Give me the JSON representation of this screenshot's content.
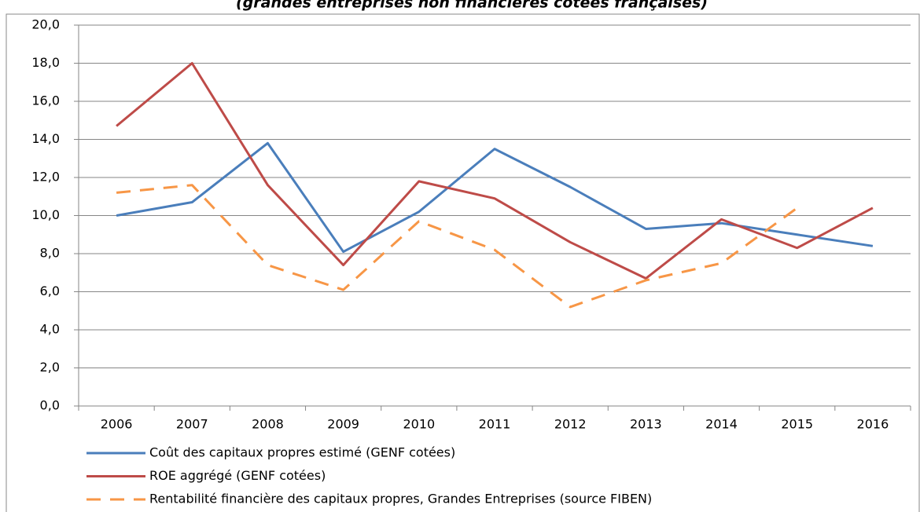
{
  "chart_data": {
    "type": "line",
    "title": "(grandes entreprises non financières cotées françaises)",
    "categories": [
      "2006",
      "2007",
      "2008",
      "2009",
      "2010",
      "2011",
      "2012",
      "2013",
      "2014",
      "2015",
      "2016"
    ],
    "series": [
      {
        "name": "Coût des capitaux propres estimé (GENF cotées)",
        "color": "#4a7ebb",
        "dash": false,
        "values": [
          10.0,
          10.7,
          13.8,
          8.1,
          10.2,
          13.5,
          11.5,
          9.3,
          9.6,
          9.0,
          8.4
        ]
      },
      {
        "name": "ROE aggrégé (GENF cotées)",
        "color": "#be4b48",
        "dash": false,
        "values": [
          14.7,
          18.0,
          11.6,
          7.4,
          11.8,
          10.9,
          8.6,
          6.7,
          9.8,
          8.3,
          10.4
        ]
      },
      {
        "name": "Rentabilité financière des capitaux propres, Grandes Entreprises (source FIBEN)",
        "color": "#f79646",
        "dash": true,
        "values": [
          11.2,
          11.6,
          7.4,
          6.1,
          9.7,
          8.2,
          5.2,
          6.6,
          7.5,
          10.4,
          null
        ]
      }
    ],
    "ylim": [
      0,
      20
    ],
    "yticks": [
      {
        "value": 0,
        "label": "0,0"
      },
      {
        "value": 2,
        "label": "2,0"
      },
      {
        "value": 4,
        "label": "4,0"
      },
      {
        "value": 6,
        "label": "6,0"
      },
      {
        "value": 8,
        "label": "8,0"
      },
      {
        "value": 10,
        "label": "10,0"
      },
      {
        "value": 12,
        "label": "12,0"
      },
      {
        "value": 14,
        "label": "14,0"
      },
      {
        "value": 16,
        "label": "16,0"
      },
      {
        "value": 18,
        "label": "18,0"
      },
      {
        "value": 20,
        "label": "20,0"
      }
    ],
    "grid": true
  }
}
